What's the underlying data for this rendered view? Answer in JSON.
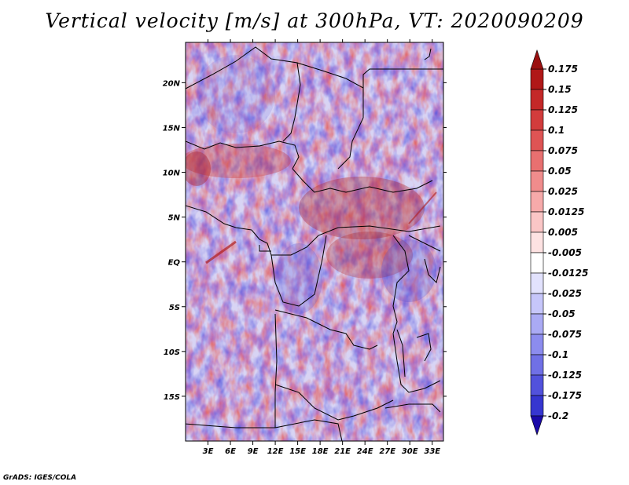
{
  "title": "Vertical velocity [m/s] at 300hPa, VT: 2020090209",
  "credit": "GrADS: IGES/COLA",
  "map": {
    "lat_range": [
      -20,
      24.5
    ],
    "lon_range": [
      0,
      34.5
    ],
    "lat_ticks": [
      {
        "value": 20,
        "label": "20N"
      },
      {
        "value": 15,
        "label": "15N"
      },
      {
        "value": 10,
        "label": "10N"
      },
      {
        "value": 5,
        "label": "5N"
      },
      {
        "value": 0,
        "label": "EQ"
      },
      {
        "value": -5,
        "label": "5S"
      },
      {
        "value": -10,
        "label": "10S"
      },
      {
        "value": -15,
        "label": "15S"
      }
    ],
    "lon_ticks": [
      {
        "value": 3,
        "label": "3E"
      },
      {
        "value": 6,
        "label": "6E"
      },
      {
        "value": 9,
        "label": "9E"
      },
      {
        "value": 12,
        "label": "12E"
      },
      {
        "value": 15,
        "label": "15E"
      },
      {
        "value": 18,
        "label": "18E"
      },
      {
        "value": 21,
        "label": "21E"
      },
      {
        "value": 24,
        "label": "24E"
      },
      {
        "value": 27,
        "label": "27E"
      },
      {
        "value": 30,
        "label": "30E"
      },
      {
        "value": 33,
        "label": "33E"
      }
    ]
  },
  "colorbar": {
    "levels": [
      {
        "label": "0.175",
        "color": "#b01818"
      },
      {
        "label": "0.15",
        "color": "#c42828"
      },
      {
        "label": "0.125",
        "color": "#d23c3c"
      },
      {
        "label": "0.1",
        "color": "#de5454"
      },
      {
        "label": "0.075",
        "color": "#e87070"
      },
      {
        "label": "0.05",
        "color": "#f08c8c"
      },
      {
        "label": "0.025",
        "color": "#f6aaaa"
      },
      {
        "label": "0.0125",
        "color": "#fac6c6"
      },
      {
        "label": "0.005",
        "color": "#fde2e2"
      },
      {
        "label": "-0.005",
        "color": "#ffffff"
      },
      {
        "label": "-0.0125",
        "color": "#e2e2fd"
      },
      {
        "label": "-0.025",
        "color": "#c6c6fa"
      },
      {
        "label": "-0.05",
        "color": "#aaaaf4"
      },
      {
        "label": "-0.075",
        "color": "#8c8cee"
      },
      {
        "label": "-0.1",
        "color": "#7070e6"
      },
      {
        "label": "-0.125",
        "color": "#5252dc"
      },
      {
        "label": "-0.175",
        "color": "#3636d0"
      },
      {
        "label": "-0.2",
        "color": "#2020bc"
      }
    ],
    "top_triangle_color": "#9a1010",
    "bottom_triangle_color": "#1a0aa8"
  }
}
